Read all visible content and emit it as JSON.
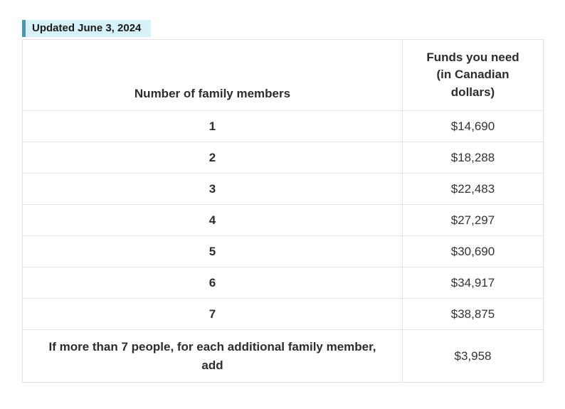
{
  "badge": {
    "label": "Updated June 3, 2024"
  },
  "chart_data": {
    "type": "table",
    "columns": [
      "Number of family members",
      "Funds you need (in Canadian dollars)"
    ],
    "rows": [
      [
        "1",
        "$14,690"
      ],
      [
        "2",
        "$18,288"
      ],
      [
        "3",
        "$22,483"
      ],
      [
        "4",
        "$27,297"
      ],
      [
        "5",
        "$30,690"
      ],
      [
        "6",
        "$34,917"
      ],
      [
        "7",
        "$38,875"
      ],
      [
        "If more than 7 people, for each additional family member, add",
        "$3,958"
      ]
    ]
  },
  "colors": {
    "badge_background": "#d6f1f8",
    "badge_accent_bar": "#4a96ad",
    "table_border": "#e2e2e2",
    "text": "#333333"
  }
}
